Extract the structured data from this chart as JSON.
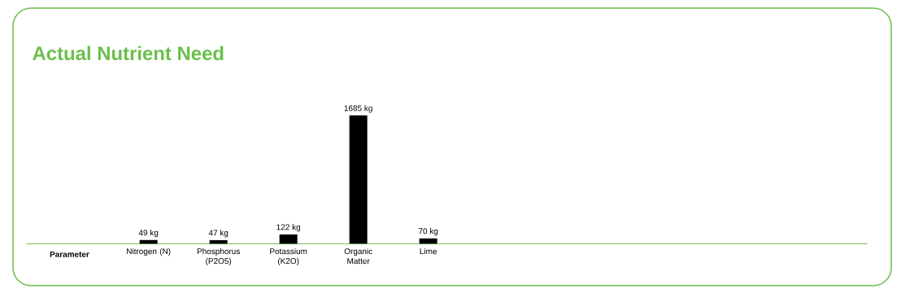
{
  "chart_data": {
    "type": "bar",
    "title": "Actual Nutrient Need",
    "xlabel": "Parameter",
    "categories": [
      "Nitrogen (N)",
      "Phosphorus (P2O5)",
      "Potassium (K2O)",
      "Organic Matter",
      "Lime"
    ],
    "values": [
      49,
      47,
      122,
      1685,
      70
    ],
    "value_labels": [
      "49 kg",
      "47 kg",
      "122 kg",
      "1685 kg",
      "70 kg"
    ],
    "color": "#000000"
  }
}
